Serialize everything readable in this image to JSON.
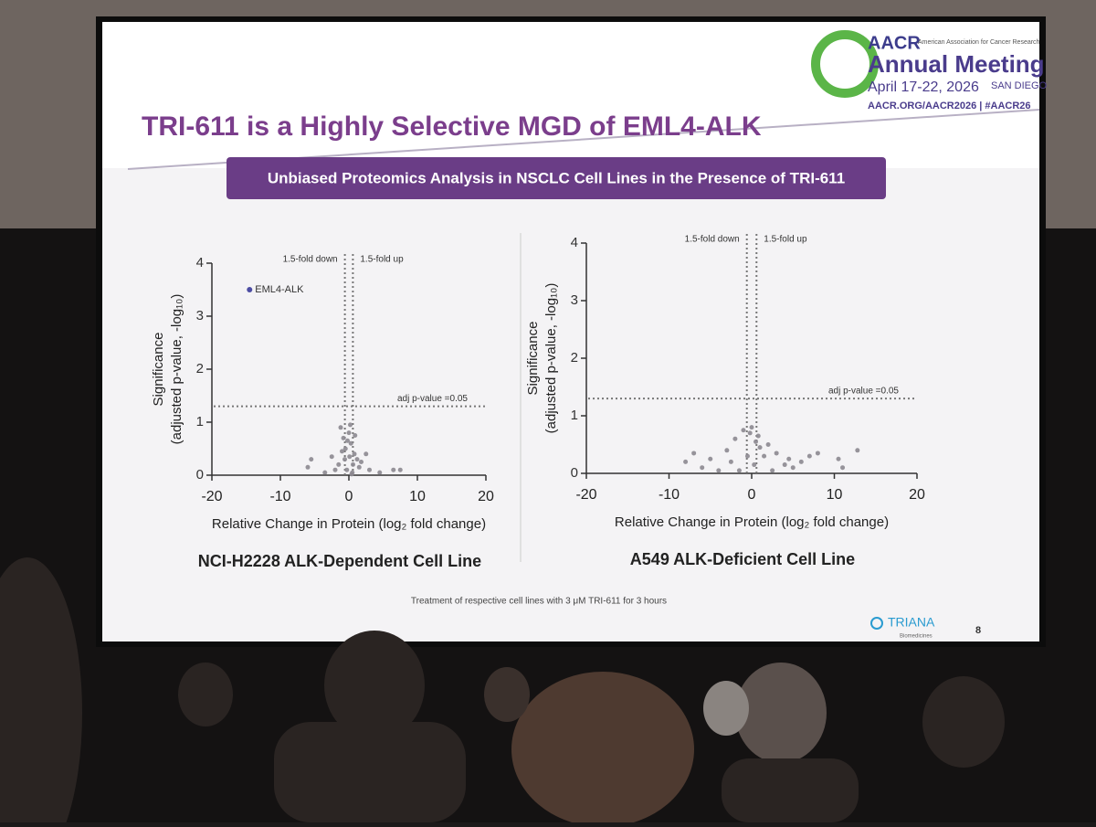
{
  "slide": {
    "title": "TRI-611 is a Highly Selective MGD of EML4-ALK",
    "banner": "Unbiased Proteomics Analysis in NSCLC Cell Lines in the Presence of TRI-611",
    "footnote": "Treatment of respective cell lines with 3 μM TRI-611 for 3 hours",
    "page_number": "8",
    "logo": {
      "org": "AACR",
      "org_full": "American Association for Cancer Research",
      "meeting": "Annual Meeting",
      "dates": "April 17-22, 2026",
      "city": "SAN DIEGO",
      "links": "AACR.ORG/AACR2026 | #AACR26"
    },
    "company": {
      "name": "TRIANA",
      "sub": "Biomedicines"
    }
  },
  "chart_data": [
    {
      "type": "scatter",
      "title": "NCI-H2228 ALK-Dependent Cell Line",
      "xlabel": "Relative Change in Protein (log₂ fold change)",
      "ylabel": [
        "Significance",
        "(adjusted p-value, -log₁₀)"
      ],
      "xlim": [
        -20,
        20
      ],
      "xticks": [
        -20,
        -10,
        0,
        10,
        20
      ],
      "ylim": [
        0,
        4
      ],
      "yticks": [
        0,
        1,
        2,
        3,
        4
      ],
      "vlines": [
        {
          "value": -0.585,
          "label": "1.5-fold down"
        },
        {
          "value": 0.585,
          "label": "1.5-fold up"
        }
      ],
      "hlines": [
        {
          "value": 1.3,
          "label": "adj p-value =0.05"
        }
      ],
      "series": [
        {
          "name": "EML4-ALK",
          "color": "#3a3a9a",
          "x": [
            -14.5
          ],
          "values": [
            3.5
          ]
        },
        {
          "color": "#8c8890",
          "x": [
            -1.2,
            -0.8,
            -0.5,
            0,
            0.3,
            0.8,
            1.2,
            -1.5,
            -0.3,
            0.5,
            1.5,
            -2,
            0.2,
            -0.6,
            0.9,
            -1,
            0.1,
            0.6,
            -0.2,
            1.8,
            3,
            4.5,
            -5.5,
            -6,
            -3.5,
            6.5,
            7.5,
            2.5,
            -2.5,
            0.4
          ],
          "values": [
            0.9,
            0.7,
            0.5,
            0.8,
            0.6,
            0.4,
            0.3,
            0.2,
            0.1,
            0.05,
            0.15,
            0.1,
            0.95,
            0.3,
            0.75,
            0.45,
            0.35,
            0.2,
            0.65,
            0.25,
            0.1,
            0.05,
            0.3,
            0.15,
            0.05,
            0.1,
            0.1,
            0.4,
            0.35,
            0.02
          ]
        }
      ]
    },
    {
      "type": "scatter",
      "title": "A549 ALK-Deficient Cell Line",
      "xlabel": "Relative Change in Protein (log₂ fold change)",
      "ylabel": [
        "Significance",
        "(adjusted p-value, -log₁₀)"
      ],
      "xlim": [
        -20,
        20
      ],
      "xticks": [
        -20,
        -10,
        0,
        10,
        20
      ],
      "ylim": [
        0,
        4
      ],
      "yticks": [
        0,
        1,
        2,
        3,
        4
      ],
      "vlines": [
        {
          "value": -0.585,
          "label": "1.5-fold down"
        },
        {
          "value": 0.585,
          "label": "1.5-fold up"
        }
      ],
      "hlines": [
        {
          "value": 1.3,
          "label": "adj p-value =0.05"
        }
      ],
      "series": [
        {
          "color": "#8c8890",
          "x": [
            -8,
            -7,
            -6,
            -5,
            -4,
            -3,
            -2,
            -1,
            0,
            0.5,
            1,
            1.5,
            2,
            3,
            4,
            5,
            6,
            7,
            8,
            10.5,
            11,
            12.8,
            -0.5,
            0.3,
            -1.5,
            0.8,
            -0.2,
            2.5,
            -2.5,
            4.5
          ],
          "values": [
            0.2,
            0.35,
            0.1,
            0.25,
            0.05,
            0.4,
            0.6,
            0.75,
            0.8,
            0.55,
            0.45,
            0.3,
            0.5,
            0.35,
            0.15,
            0.1,
            0.2,
            0.3,
            0.35,
            0.25,
            0.1,
            0.4,
            0.3,
            0.15,
            0.05,
            0.65,
            0.7,
            0.05,
            0.2,
            0.25
          ]
        }
      ]
    }
  ]
}
